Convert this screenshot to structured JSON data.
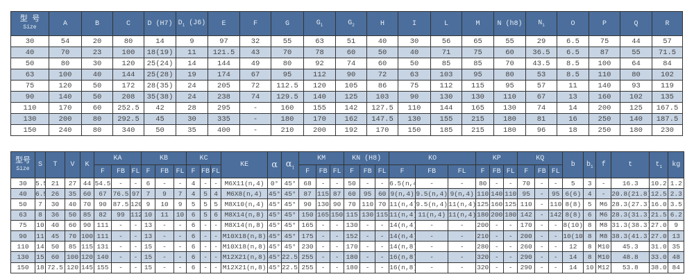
{
  "table1": {
    "size_header": {
      "cn": "型 号",
      "en": "Size"
    },
    "headers": [
      {
        "main": "A"
      },
      {
        "main": "B"
      },
      {
        "main": "C"
      },
      {
        "main": "D (H7)"
      },
      {
        "main": "D",
        "sub": "1",
        "suffix": "(J6)"
      },
      {
        "main": "E"
      },
      {
        "main": "F"
      },
      {
        "main": "G"
      },
      {
        "main": "G",
        "sub": "1"
      },
      {
        "main": "G",
        "sub": "2"
      },
      {
        "main": "H"
      },
      {
        "main": "I"
      },
      {
        "main": "L"
      },
      {
        "main": "M"
      },
      {
        "main": "N (h8)"
      },
      {
        "main": "N",
        "sub": "1"
      },
      {
        "main": "O"
      },
      {
        "main": "P"
      },
      {
        "main": "Q"
      },
      {
        "main": "R"
      }
    ],
    "rows": [
      [
        "30",
        "54",
        "20",
        "80",
        "14",
        "9",
        "97",
        "32",
        "55",
        "63",
        "51",
        "40",
        "30",
        "56",
        "65",
        "55",
        "29",
        "6.5",
        "75",
        "44",
        "57"
      ],
      [
        "40",
        "70",
        "23",
        "100",
        "18(19)",
        "11",
        "121.5",
        "43",
        "70",
        "78",
        "60",
        "50",
        "40",
        "71",
        "75",
        "60",
        "36.5",
        "6.5",
        "87",
        "55",
        "71.5"
      ],
      [
        "50",
        "80",
        "30",
        "120",
        "25(24)",
        "14",
        "144",
        "49",
        "80",
        "92",
        "74",
        "60",
        "50",
        "85",
        "85",
        "70",
        "43.5",
        "8.5",
        "100",
        "64",
        "84"
      ],
      [
        "63",
        "100",
        "40",
        "144",
        "25(28)",
        "19",
        "174",
        "67",
        "95",
        "112",
        "90",
        "72",
        "63",
        "103",
        "95",
        "80",
        "53",
        "8.5",
        "110",
        "80",
        "102"
      ],
      [
        "75",
        "120",
        "50",
        "172",
        "28(35)",
        "24",
        "205",
        "72",
        "112.5",
        "120",
        "105",
        "86",
        "75",
        "112",
        "115",
        "95",
        "57",
        "11",
        "140",
        "93",
        "119"
      ],
      [
        "90",
        "140",
        "50",
        "208",
        "35(38)",
        "24",
        "238",
        "74",
        "129.5",
        "140",
        "125",
        "103",
        "90",
        "130",
        "130",
        "110",
        "67",
        "13",
        "160",
        "102",
        "135"
      ],
      [
        "110",
        "170",
        "60",
        "252.5",
        "42",
        "28",
        "295",
        "-",
        "160",
        "155",
        "142",
        "127.5",
        "110",
        "144",
        "165",
        "130",
        "74",
        "14",
        "200",
        "125",
        "167.5"
      ],
      [
        "130",
        "200",
        "80",
        "292.5",
        "45",
        "30",
        "335",
        "-",
        "180",
        "170",
        "162",
        "147.5",
        "130",
        "155",
        "215",
        "180",
        "81",
        "16",
        "250",
        "140",
        "187.5"
      ],
      [
        "150",
        "240",
        "80",
        "340",
        "50",
        "35",
        "400",
        "-",
        "210",
        "200",
        "192",
        "170",
        "150",
        "185",
        "215",
        "180",
        "96",
        "18",
        "250",
        "180",
        "230"
      ]
    ]
  },
  "table2": {
    "size_header": {
      "cn": "型号",
      "en": "Size"
    },
    "top_headers": [
      {
        "main": "S"
      },
      {
        "main": "T"
      },
      {
        "main": "V"
      },
      {
        "main": "K"
      },
      {
        "main": "KA",
        "group": [
          "F",
          "FB",
          "FL"
        ]
      },
      {
        "main": "KB",
        "group": [
          "F",
          "FB",
          "FL"
        ]
      },
      {
        "main": "KC",
        "group": [
          "F",
          "FB",
          "FL"
        ]
      },
      {
        "main": "KE"
      },
      {
        "main": "α",
        "greek": true
      },
      {
        "main": "α",
        "sub": "1",
        "greek": true
      },
      {
        "main": "KM",
        "group": [
          "F",
          "FB",
          "FL"
        ]
      },
      {
        "main": "KN (H8)",
        "group": [
          "F",
          "FB",
          "FL"
        ]
      },
      {
        "main": "KO",
        "group": [
          "F",
          "FB",
          "FL"
        ]
      },
      {
        "main": "KP",
        "group": [
          "F",
          "FB",
          "FL"
        ]
      },
      {
        "main": "KQ",
        "group": [
          "F",
          "FB",
          "FL"
        ]
      },
      {
        "main": "b"
      },
      {
        "main": "b",
        "sub": "1"
      },
      {
        "main": "f"
      },
      {
        "main": "t"
      },
      {
        "main": "t",
        "sub": "1"
      },
      {
        "main": "kg"
      }
    ],
    "rows": [
      [
        "30",
        "5.5",
        "21",
        "27",
        "44",
        "54.5",
        "-",
        "-",
        "6",
        "-",
        "-",
        "4",
        "-",
        "-",
        "M6X11(n,4)",
        "0°",
        "45°",
        "68",
        "-",
        "-",
        "50",
        "-",
        "-",
        "6.5(n,4)",
        "-",
        "-",
        "80",
        "-",
        "-",
        "70",
        "-",
        "-",
        "5",
        "3",
        "-",
        "16.3",
        "10.2",
        "1.2"
      ],
      [
        "40",
        "6.5",
        "26",
        "35",
        "60",
        "67",
        "76.5",
        "97",
        "7",
        "9",
        "7",
        "4",
        "5",
        "4",
        "M6X8(n,4)",
        "45°",
        "45°",
        "87",
        "115",
        "87",
        "60",
        "95",
        "60",
        "9(n,4)",
        "9.5(n,4)",
        "9(n,4)",
        "110",
        "140",
        "110",
        "95",
        "-",
        "95",
        "6(6)",
        "4",
        "-",
        "20.8(21.8)",
        "12.5",
        "2.3"
      ],
      [
        "50",
        "7",
        "30",
        "40",
        "70",
        "90",
        "87.5",
        "120",
        "9",
        "10",
        "9",
        "5",
        "5",
        "5",
        "M8X10(n,4)",
        "45°",
        "45°",
        "90",
        "130",
        "90",
        "70",
        "110",
        "70",
        "11(n,4)",
        "9.5(n,4)",
        "11(n,4)",
        "125",
        "160",
        "125",
        "110",
        "-",
        "110",
        "8(8)",
        "5",
        "M6",
        "28.3(27.3)",
        "16.0",
        "3.5"
      ],
      [
        "63",
        "8",
        "36",
        "50",
        "85",
        "82",
        "99",
        "112",
        "10",
        "11",
        "10",
        "6",
        "5",
        "6",
        "M8X14(n,8)",
        "45°",
        "45°",
        "150",
        "165",
        "150",
        "115",
        "130",
        "115",
        "11(n,4)",
        "11(n,4)",
        "11(n,4)",
        "180",
        "200",
        "180",
        "142",
        "-",
        "142",
        "8(8)",
        "6",
        "M6",
        "28.3(31.3)",
        "21.5",
        "6.2"
      ],
      [
        "75",
        "10",
        "40",
        "60",
        "90",
        "111",
        "-",
        "-",
        "13",
        "-",
        "-",
        "6",
        "-",
        "-",
        "M8X14(n,8)",
        "45°",
        "45°",
        "165",
        "-",
        "-",
        "130",
        "-",
        "-",
        "14(n,4)",
        "-",
        "-",
        "200",
        "-",
        "-",
        "170",
        "-",
        "-",
        "8(10)",
        "8",
        "M8",
        "31.3(38.3)",
        "27.0",
        "9"
      ],
      [
        "90",
        "11",
        "45",
        "70",
        "100",
        "111",
        "-",
        "-",
        "13",
        "-",
        "-",
        "6",
        "-",
        "-",
        "M10X18(n,8)",
        "45°",
        "45°",
        "175",
        "-",
        "-",
        "152",
        "-",
        "-",
        "14(n,4)",
        "-",
        "-",
        "210",
        "-",
        "-",
        "200",
        "-",
        "-",
        "10(10)",
        "8",
        "M8",
        "38.3(41.3)",
        "27.0",
        "13"
      ],
      [
        "110",
        "14",
        "50",
        "85",
        "115",
        "131",
        "-",
        "-",
        "15",
        "-",
        "-",
        "6",
        "-",
        "-",
        "M10X18(n,8)",
        "45°",
        "45°",
        "230",
        "-",
        "-",
        "170",
        "-",
        "-",
        "14(n,8)",
        "-",
        "-",
        "280",
        "-",
        "-",
        "260",
        "-",
        "-",
        "12",
        "8",
        "M10",
        "45.3",
        "31.0",
        "35"
      ],
      [
        "130",
        "15",
        "60",
        "100",
        "120",
        "140",
        "-",
        "-",
        "15",
        "-",
        "-",
        "6",
        "-",
        "-",
        "M12X21(n,8)",
        "45°",
        "22.5°",
        "255",
        "-",
        "-",
        "180",
        "-",
        "-",
        "16(n,8)",
        "-",
        "-",
        "320",
        "-",
        "-",
        "290",
        "-",
        "-",
        "14",
        "8",
        "M10",
        "48.8",
        "33.0",
        "48"
      ],
      [
        "150",
        "18",
        "72.5",
        "120",
        "145",
        "155",
        "-",
        "-",
        "15",
        "-",
        "-",
        "6",
        "-",
        "-",
        "M12X21(n,8)",
        "45°",
        "22.5°",
        "255",
        "-",
        "-",
        "180",
        "-",
        "-",
        "16(n,8)",
        "-",
        "-",
        "320",
        "-",
        "-",
        "290",
        "-",
        "-",
        "14",
        "10",
        "M12",
        "53.8",
        "38.0",
        "84"
      ]
    ]
  },
  "colors": {
    "header_bg": "#4b6e9c",
    "header_text": "#e6edf5",
    "alt_row": "#c7d4e4",
    "border": "#333333",
    "text": "#444444"
  }
}
